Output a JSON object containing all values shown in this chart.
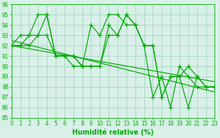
{
  "series": [
    {
      "x": [
        0,
        1,
        2,
        3,
        4,
        5,
        6,
        7,
        8,
        9,
        10,
        11,
        12,
        13,
        14,
        15,
        16,
        17,
        18,
        19,
        20,
        21,
        22,
        23
      ],
      "y": [
        92,
        93,
        93,
        95,
        95,
        91,
        91,
        90,
        90,
        94,
        93,
        95,
        95,
        94,
        94,
        92,
        87,
        89,
        86,
        90,
        89,
        88,
        88,
        88
      ]
    },
    {
      "x": [
        0,
        1,
        2,
        3,
        4,
        5,
        6,
        7,
        8,
        9,
        10,
        11,
        12,
        13,
        14,
        15,
        16,
        17,
        18,
        19,
        20,
        21,
        22,
        23
      ],
      "y": [
        92,
        92,
        93,
        93,
        95,
        91,
        91,
        91,
        90,
        90,
        90,
        94,
        93,
        95,
        94,
        92,
        92,
        87,
        89,
        89,
        90,
        89,
        88,
        88
      ]
    },
    {
      "x": [
        0,
        1,
        2,
        3,
        4,
        5,
        6,
        7,
        8,
        9,
        10,
        11,
        12,
        13,
        14,
        15,
        16,
        17,
        18,
        19,
        20,
        21,
        22,
        23
      ],
      "y": [
        92,
        92,
        92,
        93,
        93,
        91,
        91,
        91,
        90,
        90,
        90,
        93,
        93,
        95,
        94,
        92,
        92,
        87,
        89,
        89,
        86,
        89,
        88,
        88
      ]
    },
    {
      "x": [
        0,
        23
      ],
      "y": [
        92.5,
        87.5
      ]
    },
    {
      "x": [
        0,
        23
      ],
      "y": [
        92,
        88.5
      ]
    }
  ],
  "line_color": "#00aa00",
  "marker": "+",
  "markersize": 4,
  "linewidth": 0.9,
  "markeredgewidth": 0.9,
  "xlim": [
    0,
    23
  ],
  "ylim": [
    85,
    96
  ],
  "yticks": [
    85,
    86,
    87,
    88,
    89,
    90,
    91,
    92,
    93,
    94,
    95,
    96
  ],
  "xticks": [
    0,
    1,
    2,
    3,
    4,
    5,
    6,
    7,
    8,
    9,
    10,
    11,
    12,
    13,
    14,
    15,
    16,
    17,
    18,
    19,
    20,
    21,
    22,
    23
  ],
  "xlabel": "Humidité relative (%)",
  "grid_color": "#99ccbb",
  "bg_color": "#d8f0e8",
  "tick_color": "#00aa00",
  "xlabel_color": "#00aa00",
  "xlabel_fontsize": 7,
  "tick_fontsize": 5.5
}
